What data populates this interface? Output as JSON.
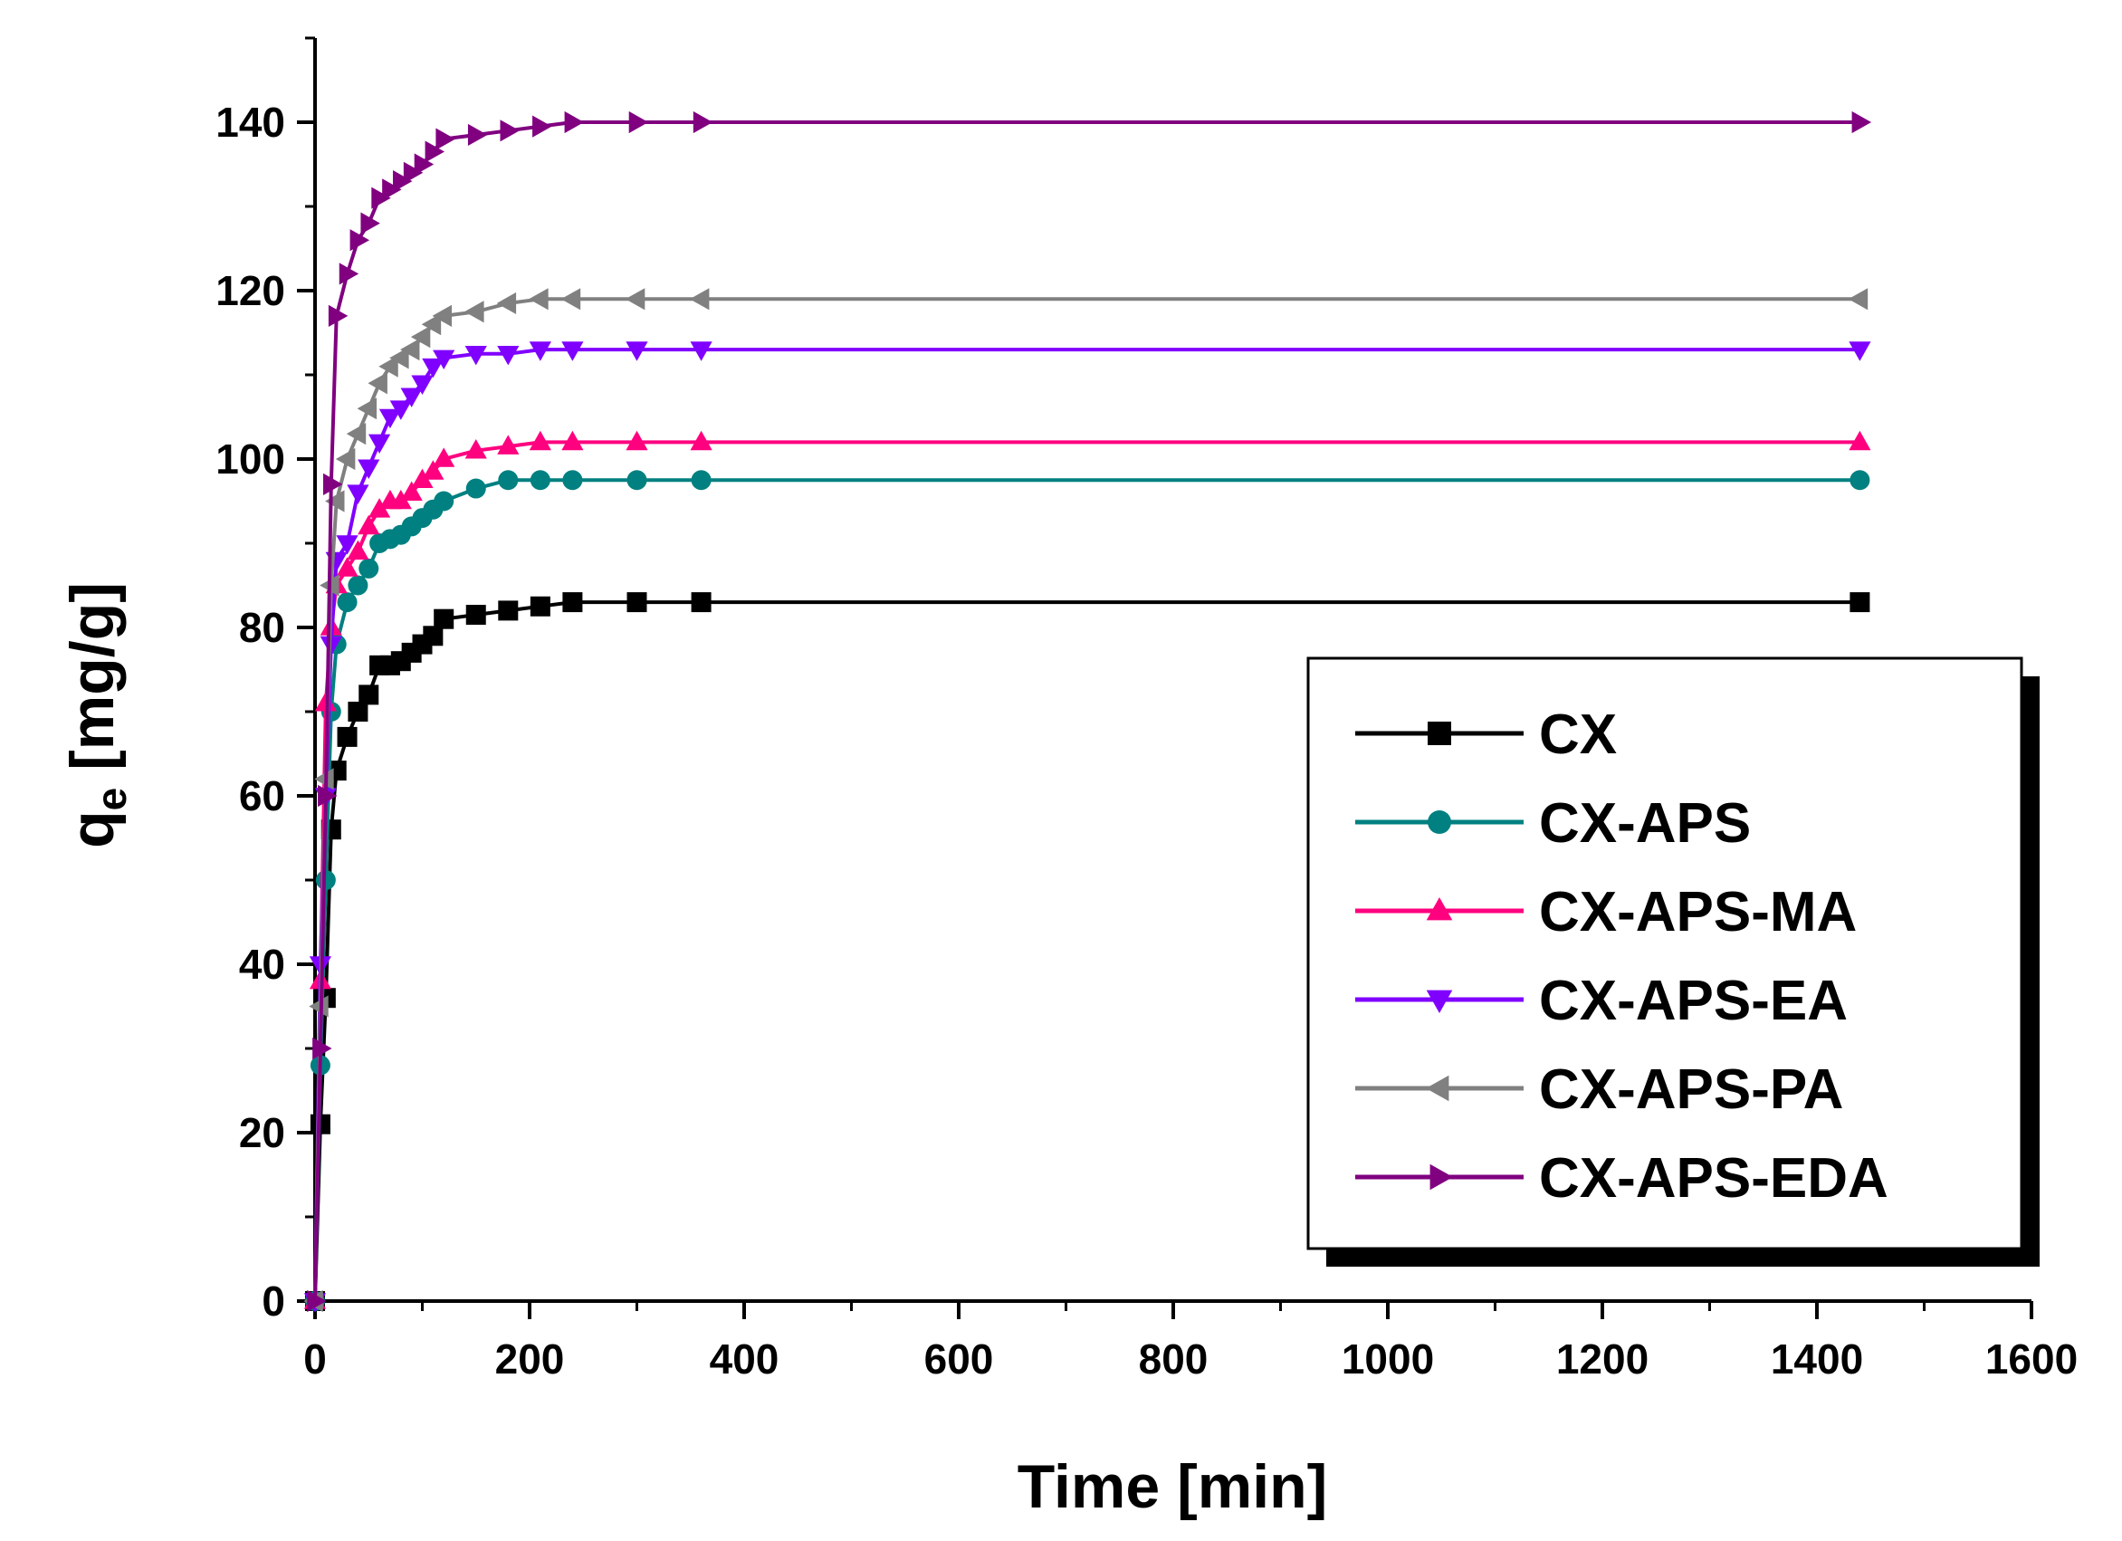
{
  "chart_data": {
    "type": "line",
    "title": "",
    "xlabel": "Time [min]",
    "ylabel_main": "q",
    "ylabel_sub": "e",
    "ylabel_unit": " [mg/g]",
    "xlim": [
      0,
      1600
    ],
    "ylim": [
      0,
      150
    ],
    "xticks": [
      0,
      200,
      400,
      600,
      800,
      1000,
      1200,
      1400,
      1600
    ],
    "yticks": [
      0,
      20,
      40,
      60,
      80,
      100,
      120,
      140
    ],
    "legend_position": "lower-right",
    "x": [
      0,
      5,
      10,
      15,
      20,
      30,
      40,
      50,
      60,
      70,
      80,
      90,
      100,
      110,
      120,
      150,
      180,
      210,
      240,
      300,
      360,
      1440
    ],
    "series": [
      {
        "name": "CX",
        "color": "#000000",
        "marker": "square",
        "values": [
          0,
          21,
          36,
          56,
          63,
          67,
          70,
          72,
          75.5,
          75.5,
          76,
          77,
          78,
          79,
          81,
          81.5,
          82,
          82.5,
          83,
          83,
          83,
          83
        ]
      },
      {
        "name": "CX-APS",
        "color": "#008080",
        "marker": "circle",
        "values": [
          0,
          28,
          50,
          70,
          78,
          83,
          85,
          87,
          90,
          90.5,
          91,
          92,
          93,
          94,
          95,
          96.5,
          97.5,
          97.5,
          97.5,
          97.5,
          97.5,
          97.5
        ]
      },
      {
        "name": "CX-APS-MA",
        "color": "#FF007F",
        "marker": "triangle-up",
        "values": [
          0,
          38,
          71,
          80,
          85,
          87,
          89,
          92,
          94,
          95,
          95,
          96,
          97.5,
          98.5,
          100,
          101,
          101.5,
          102,
          102,
          102,
          102,
          102
        ]
      },
      {
        "name": "CX-APS-EA",
        "color": "#8000FF",
        "marker": "triangle-down",
        "values": [
          0,
          40,
          60,
          78,
          88,
          90,
          96,
          99,
          102,
          105,
          106,
          107.5,
          109,
          111,
          112,
          112.5,
          112.5,
          113,
          113,
          113,
          113,
          113
        ]
      },
      {
        "name": "CX-APS-PA",
        "color": "#808080",
        "marker": "triangle-left",
        "values": [
          0,
          35,
          62,
          85,
          95,
          100,
          103,
          106,
          109,
          111,
          112,
          113,
          114.5,
          116,
          117,
          117.5,
          118.5,
          119,
          119,
          119,
          119,
          119
        ]
      },
      {
        "name": "CX-APS-EDA",
        "color": "#800080",
        "marker": "triangle-right",
        "values": [
          0,
          30,
          60,
          97,
          117,
          122,
          126,
          128,
          131,
          132,
          133,
          134,
          135,
          136.5,
          138,
          138.5,
          139,
          139.5,
          140,
          140,
          140,
          140
        ]
      }
    ]
  }
}
